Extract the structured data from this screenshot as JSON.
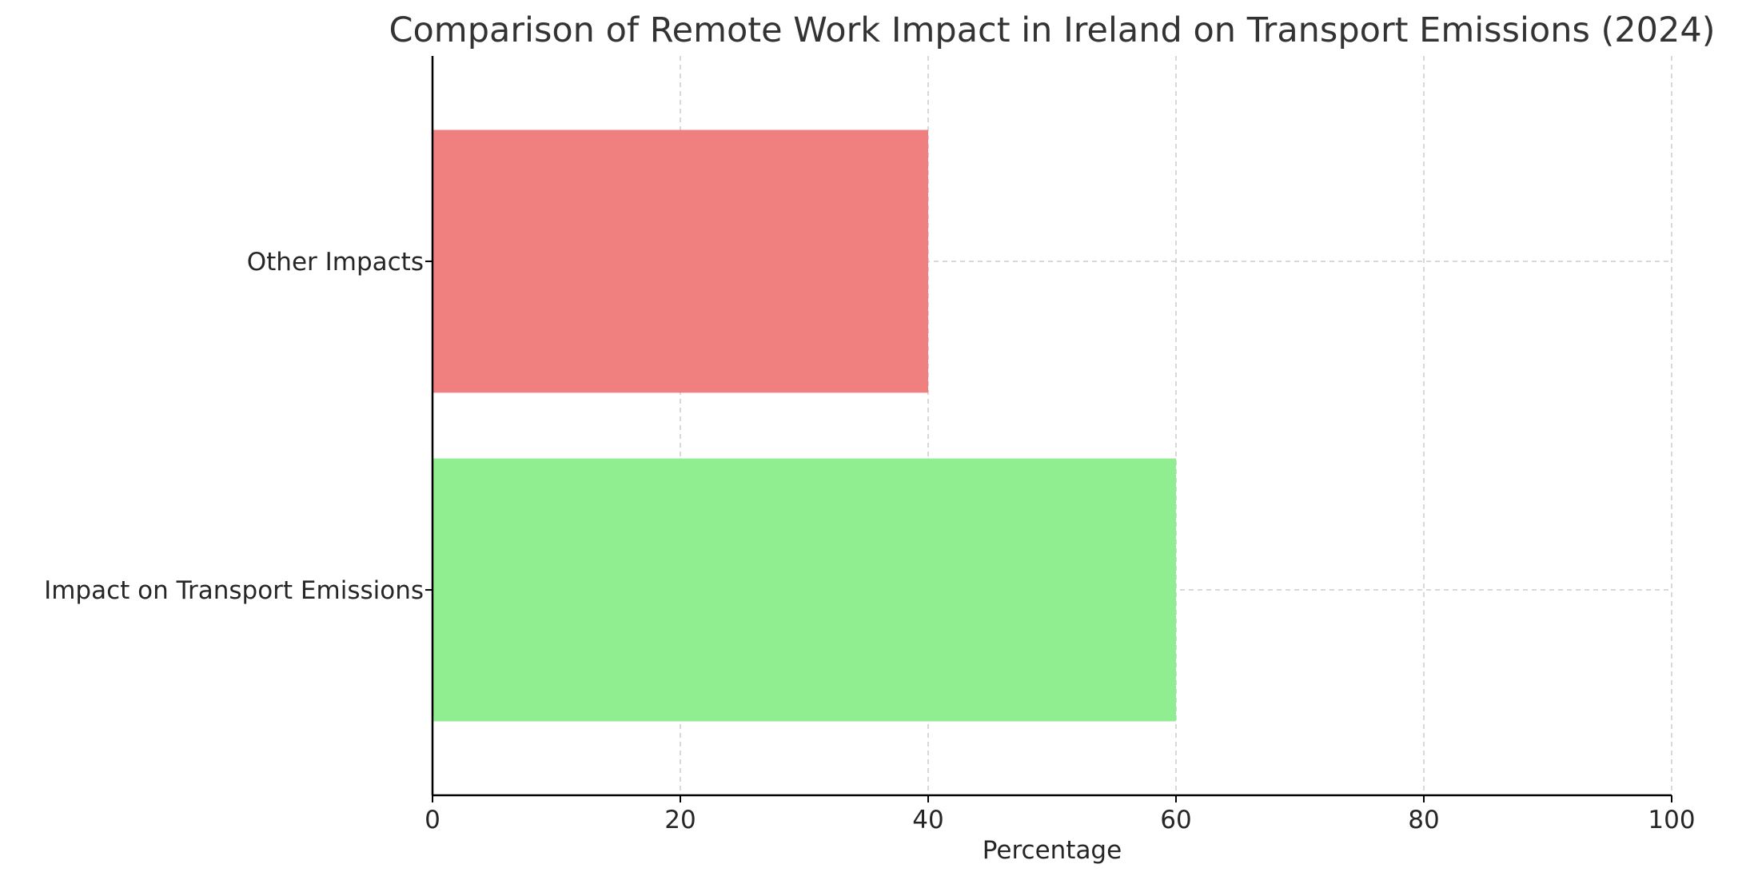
{
  "chart_data": {
    "type": "bar",
    "orientation": "horizontal",
    "title": "Comparison of Remote Work Impact in Ireland on Transport Emissions (2024)",
    "xlabel": "Percentage",
    "ylabel": "",
    "xlim": [
      0,
      100
    ],
    "xticks": [
      0,
      20,
      40,
      60,
      80,
      100
    ],
    "grid": true,
    "categories": [
      "Impact on Transport Emissions",
      "Other Impacts"
    ],
    "values": [
      60,
      40
    ],
    "colors": [
      "#90ee90",
      "#f08080"
    ]
  }
}
